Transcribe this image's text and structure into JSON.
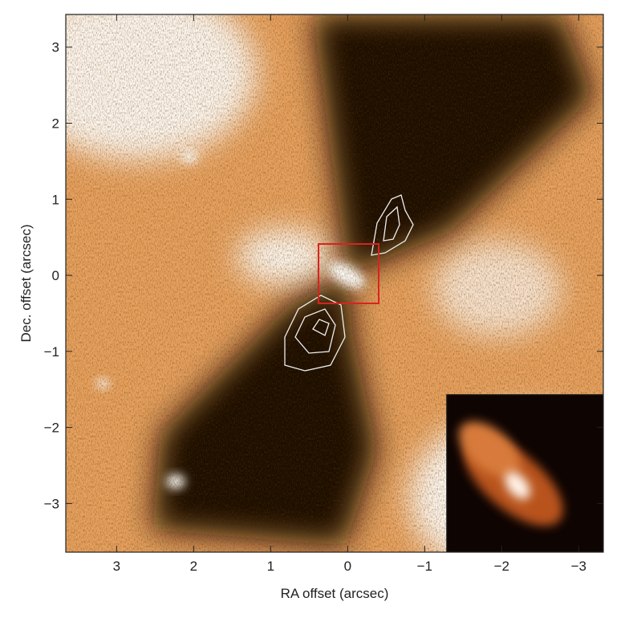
{
  "chart_data": {
    "type": "image",
    "xlabel": "RA offset (arcsec)",
    "ylabel": "Dec. offset (arcsec)",
    "xlim": [
      3.66,
      -3.32
    ],
    "ylim": [
      -3.64,
      3.43
    ],
    "xticks": [
      3,
      2,
      1,
      0,
      {
        "value": -1,
        "label": "−1"
      },
      {
        "value": -2,
        "label": "−2"
      },
      {
        "value": -3,
        "label": "−3"
      }
    ],
    "yticks": [
      {
        "value": -3,
        "label": "−3"
      },
      {
        "value": -2,
        "label": "−2"
      },
      {
        "value": -1,
        "label": "−1"
      },
      0,
      1,
      2,
      3
    ]
  }
}
